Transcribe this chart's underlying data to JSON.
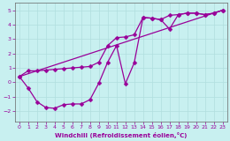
{
  "xlabel": "Windchill (Refroidissement éolien,°C)",
  "bg_color": "#c8f0f0",
  "line_color": "#990099",
  "grid_color": "#b0dede",
  "xlim": [
    -0.5,
    23.5
  ],
  "ylim": [
    -2.7,
    5.5
  ],
  "xticks": [
    0,
    1,
    2,
    3,
    4,
    5,
    6,
    7,
    8,
    9,
    10,
    11,
    12,
    13,
    14,
    15,
    16,
    17,
    18,
    19,
    20,
    21,
    22,
    23
  ],
  "yticks": [
    -2,
    -1,
    0,
    1,
    2,
    3,
    4,
    5
  ],
  "line1_x": [
    0,
    1,
    2,
    3,
    4,
    5,
    6,
    7,
    8,
    9,
    10,
    11,
    12,
    13,
    14,
    15,
    16,
    17,
    18,
    19,
    20,
    21,
    22,
    23
  ],
  "line1_y": [
    0.4,
    0.8,
    0.8,
    0.85,
    0.9,
    0.95,
    1.0,
    1.05,
    1.1,
    1.4,
    2.55,
    3.1,
    3.15,
    3.3,
    4.5,
    4.45,
    4.35,
    4.65,
    4.7,
    4.8,
    4.8,
    4.7,
    4.8,
    5.0
  ],
  "line2_x": [
    0,
    1,
    2,
    3,
    4,
    5,
    6,
    7,
    8,
    9,
    10,
    11,
    12,
    13,
    14,
    15,
    16,
    17,
    18,
    19,
    20,
    21,
    22,
    23
  ],
  "line2_y": [
    0.4,
    -0.4,
    -1.35,
    -1.75,
    -1.8,
    -1.55,
    -1.5,
    -1.5,
    -1.2,
    -0.05,
    1.4,
    2.55,
    -0.1,
    1.35,
    4.5,
    4.45,
    4.35,
    3.7,
    4.7,
    4.8,
    4.8,
    4.7,
    4.8,
    5.0
  ],
  "line3_x": [
    0,
    23
  ],
  "line3_y": [
    0.4,
    5.0
  ],
  "markersize": 2.5,
  "linewidth": 0.9
}
